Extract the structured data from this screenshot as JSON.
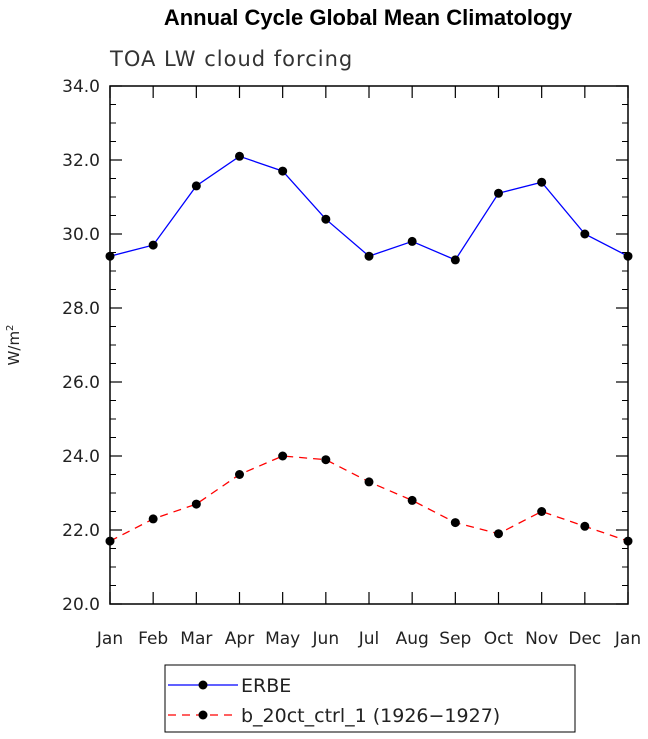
{
  "chart_data": {
    "type": "line",
    "title": "Annual Cycle Global Mean Climatology",
    "subtitle": "TOA LW cloud forcing",
    "xlabel": "",
    "ylabel": "W/m",
    "ylabel_sup": "2",
    "categories": [
      "Jan",
      "Feb",
      "Mar",
      "Apr",
      "May",
      "Jun",
      "Jul",
      "Aug",
      "Sep",
      "Oct",
      "Nov",
      "Dec",
      "Jan"
    ],
    "ylim": [
      20.0,
      34.0
    ],
    "yticks": [
      "20.0",
      "22.0",
      "24.0",
      "26.0",
      "28.0",
      "30.0",
      "32.0",
      "34.0"
    ],
    "grid": false,
    "legend_position": "bottom",
    "series": [
      {
        "name": "ERBE",
        "color": "#0000ff",
        "dash": "solid",
        "marker": "dot",
        "values": [
          29.4,
          29.7,
          31.3,
          32.1,
          31.7,
          30.4,
          29.4,
          29.8,
          29.3,
          31.1,
          31.4,
          30.0,
          29.4
        ]
      },
      {
        "name": "b_20ct_ctrl_1 (1926−1927)",
        "color": "#ff0000",
        "dash": "dashed",
        "marker": "dot",
        "values": [
          21.7,
          22.3,
          22.7,
          23.5,
          24.0,
          23.9,
          23.3,
          22.8,
          22.2,
          21.9,
          22.5,
          22.1,
          21.7
        ]
      }
    ]
  }
}
